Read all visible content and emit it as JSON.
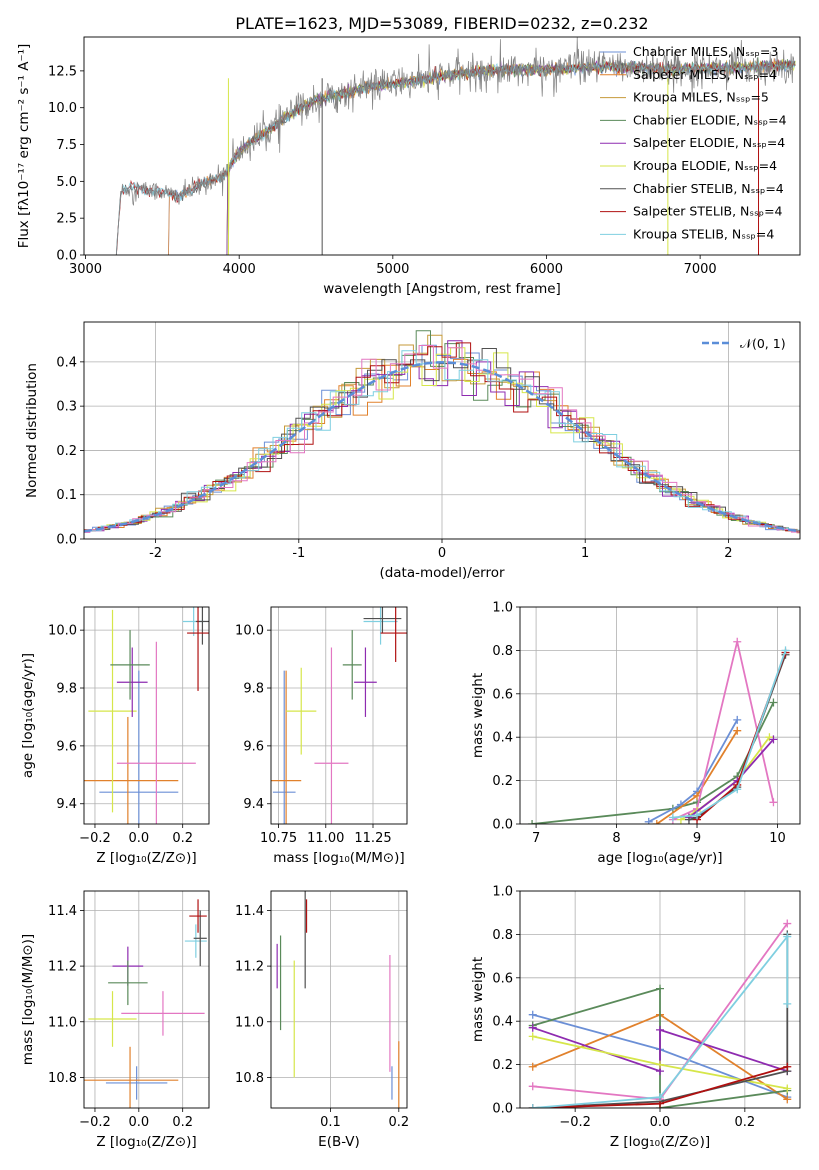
{
  "colors": {
    "Chabrier MILES": "#6b8fd6",
    "Salpeter MILES": "#e1812c",
    "Kroupa MILES": "#c69a3a",
    "Chabrier ELODIE": "#5a8a5a",
    "Salpeter ELODIE": "#8e2bb0",
    "Kroupa ELODIE": "#d6e64a",
    "Chabrier STELIB": "#505050",
    "Salpeter STELIB": "#b01010",
    "Kroupa STELIB": "#7fcfe0",
    "pink": "#e377c2",
    "normal": "#5b8ed8"
  },
  "chart_data": [
    {
      "id": "spectrum",
      "type": "line",
      "title": "PLATE=1623, MJD=53089, FIBERID=0232, z=0.232",
      "xlabel": "wavelength [Angstrom, rest frame]",
      "ylabel": "Flux [fλ10⁻¹⁷ erg cm⁻² s⁻¹ A⁻¹]",
      "xlim": [
        2990,
        7650
      ],
      "ylim": [
        0,
        14.8
      ],
      "xticks": [
        3000,
        4000,
        5000,
        6000,
        7000
      ],
      "yticks": [
        0.0,
        2.5,
        5.0,
        7.5,
        10.0,
        12.5
      ],
      "legend": [
        "Chabrier MILES, Nₛₛₚ=3",
        "Salpeter MILES, Nₛₛₚ=4",
        "Kroupa MILES, Nₛₛₚ=5",
        "Chabrier ELODIE, Nₛₛₚ=4",
        "Salpeter ELODIE, Nₛₛₚ=4",
        "Kroupa ELODIE, Nₛₛₚ=4",
        "Chabrier STELIB, Nₛₛₚ=4",
        "Salpeter STELIB, Nₛₛₚ=4",
        "Kroupa STELIB, Nₛₛₚ=4"
      ],
      "legend_placement": "upper-right",
      "continuum": [
        [
          3200,
          0
        ],
        [
          3230,
          4.3
        ],
        [
          3300,
          4.6
        ],
        [
          3400,
          4.4
        ],
        [
          3500,
          4.3
        ],
        [
          3600,
          4.0
        ],
        [
          3700,
          4.5
        ],
        [
          3800,
          5.0
        ],
        [
          3900,
          5.4
        ],
        [
          4000,
          7.0
        ],
        [
          4100,
          7.8
        ],
        [
          4200,
          8.5
        ],
        [
          4300,
          9.3
        ],
        [
          4400,
          10.0
        ],
        [
          4500,
          10.5
        ],
        [
          4600,
          10.8
        ],
        [
          4700,
          11.0
        ],
        [
          4800,
          11.3
        ],
        [
          4900,
          11.5
        ],
        [
          5000,
          11.6
        ],
        [
          5200,
          11.9
        ],
        [
          5400,
          12.3
        ],
        [
          5600,
          12.5
        ],
        [
          5800,
          12.6
        ],
        [
          6000,
          12.6
        ],
        [
          6200,
          12.7
        ],
        [
          6400,
          12.8
        ],
        [
          6600,
          12.7
        ],
        [
          6800,
          12.6
        ],
        [
          7000,
          12.7
        ],
        [
          7200,
          12.7
        ],
        [
          7400,
          12.8
        ],
        [
          7600,
          12.9
        ]
      ],
      "model_starts": {
        "Chabrier MILES": 3540,
        "Salpeter MILES": 3540,
        "Kroupa MILES": 3920,
        "Chabrier ELODIE": 3920,
        "Salpeter ELODIE": 3920,
        "Kroupa ELODIE": 3930,
        "Chabrier STELIB": 3200,
        "Salpeter STELIB": 3200,
        "Kroupa STELIB": 3200
      },
      "grid": false
    },
    {
      "id": "residuals",
      "type": "histogram",
      "xlabel": "(data-model)/error",
      "ylabel": "Normed distribution",
      "xlim": [
        -2.5,
        2.5
      ],
      "ylim": [
        0,
        0.49
      ],
      "xticks": [
        -2,
        -1,
        0,
        1,
        2
      ],
      "yticks": [
        0.0,
        0.1,
        0.2,
        0.3,
        0.4
      ],
      "legend": [
        "𝒩(0, 1)"
      ],
      "legend_placement": "upper-right",
      "grid": true
    },
    {
      "id": "age-z",
      "type": "errorbar",
      "xlabel": "Z [log₁₀(Z/Z⊙)]",
      "ylabel": "age  [log₁₀(age/yr)]",
      "xlim": [
        -0.25,
        0.32
      ],
      "ylim": [
        9.33,
        10.08
      ],
      "xticks": [
        -0.2,
        0.0,
        0.2
      ],
      "xticklabels": [
        "−0.2",
        "0.0",
        "0.2"
      ],
      "yticks": [
        9.4,
        9.6,
        9.8,
        10.0
      ],
      "yticklabels": [
        "9.4",
        "9.6",
        "9.8",
        "10.0"
      ],
      "grid": true,
      "points": [
        {
          "c": "Chabrier MILES",
          "x": 0.0,
          "xe": 0.18,
          "y": 9.44,
          "ye": 0.42
        },
        {
          "c": "Salpeter MILES",
          "x": -0.05,
          "xe": 0.23,
          "y": 9.48,
          "ye": 0.22
        },
        {
          "c": "pink",
          "x": 0.08,
          "xe": 0.18,
          "y": 9.54,
          "ye": 0.42
        },
        {
          "c": "Kroupa ELODIE",
          "x": -0.12,
          "xe": 0.11,
          "y": 9.72,
          "ye": 0.35
        },
        {
          "c": "Salpeter ELODIE",
          "x": -0.03,
          "xe": 0.07,
          "y": 9.82,
          "ye": 0.12
        },
        {
          "c": "Chabrier ELODIE",
          "x": -0.04,
          "xe": 0.09,
          "y": 9.88,
          "ye": 0.12
        },
        {
          "c": "Kroupa STELIB",
          "x": 0.25,
          "xe": 0.05,
          "y": 10.03,
          "ye": 0.05
        },
        {
          "c": "Chabrier STELIB",
          "x": 0.29,
          "xe": 0.03,
          "y": 10.03,
          "ye": 0.08
        },
        {
          "c": "Salpeter STELIB",
          "x": 0.27,
          "xe": 0.05,
          "y": 9.99,
          "ye": 0.2
        }
      ]
    },
    {
      "id": "age-mass",
      "type": "errorbar",
      "xlabel": "mass [log₁₀(M/M⊙)]",
      "ylabel": "",
      "xlim": [
        10.71,
        11.43
      ],
      "ylim": [
        9.33,
        10.08
      ],
      "xticks": [
        10.75,
        11.0,
        11.25
      ],
      "xticklabels": [
        "10.75",
        "11.00",
        "11.25"
      ],
      "yticks": [
        9.4,
        9.6,
        9.8,
        10.0
      ],
      "yticklabels": [
        "9.4",
        "9.6",
        "9.8",
        "10.0"
      ],
      "grid": true,
      "points": [
        {
          "c": "Chabrier MILES",
          "x": 10.78,
          "xe": 0.06,
          "y": 9.44,
          "ye": 0.42
        },
        {
          "c": "Salpeter MILES",
          "x": 10.79,
          "xe": 0.08,
          "y": 9.48,
          "ye": 0.38
        },
        {
          "c": "pink",
          "x": 11.03,
          "xe": 0.09,
          "y": 9.54,
          "ye": 0.4
        },
        {
          "c": "Kroupa ELODIE",
          "x": 10.87,
          "xe": 0.08,
          "y": 9.72,
          "ye": 0.15
        },
        {
          "c": "Salpeter ELODIE",
          "x": 11.21,
          "xe": 0.06,
          "y": 9.82,
          "ye": 0.12
        },
        {
          "c": "Chabrier ELODIE",
          "x": 11.14,
          "xe": 0.05,
          "y": 9.88,
          "ye": 0.12
        },
        {
          "c": "Kroupa STELIB",
          "x": 11.29,
          "xe": 0.09,
          "y": 10.03,
          "ye": 0.08
        },
        {
          "c": "Chabrier STELIB",
          "x": 11.3,
          "xe": 0.1,
          "y": 10.04,
          "ye": 0.05
        },
        {
          "c": "Salpeter STELIB",
          "x": 11.37,
          "xe": 0.08,
          "y": 9.99,
          "ye": 0.1
        }
      ]
    },
    {
      "id": "weight-age",
      "type": "line",
      "xlabel": "age  [log₁₀(age/yr)]",
      "ylabel": "mass weight",
      "xlim": [
        6.8,
        10.28
      ],
      "ylim": [
        0,
        1.0
      ],
      "xticks": [
        7,
        8,
        9,
        10
      ],
      "yticks": [
        0.0,
        0.2,
        0.4,
        0.6,
        0.8,
        1.0
      ],
      "grid": true,
      "series": [
        {
          "c": "Chabrier ELODIE",
          "x": [
            6.95,
            8.7,
            9.0,
            9.5,
            9.95
          ],
          "y": [
            0.0,
            0.07,
            0.1,
            0.22,
            0.56
          ]
        },
        {
          "c": "Chabrier MILES",
          "x": [
            8.4,
            8.8,
            9.0,
            9.5
          ],
          "y": [
            0.01,
            0.09,
            0.15,
            0.48
          ]
        },
        {
          "c": "Salpeter MILES",
          "x": [
            8.5,
            9.0,
            9.5
          ],
          "y": [
            0.0,
            0.13,
            0.43
          ]
        },
        {
          "c": "pink",
          "x": [
            8.7,
            9.0,
            9.5,
            9.95
          ],
          "y": [
            0.02,
            0.07,
            0.84,
            0.1
          ]
        },
        {
          "c": "Kroupa ELODIE",
          "x": [
            8.8,
            9.0,
            9.5,
            9.9
          ],
          "y": [
            0.02,
            0.06,
            0.2,
            0.4
          ]
        },
        {
          "c": "Salpeter ELODIE",
          "x": [
            8.9,
            9.5,
            9.95
          ],
          "y": [
            0.03,
            0.2,
            0.39
          ]
        },
        {
          "c": "Chabrier STELIB",
          "x": [
            8.9,
            9.0,
            9.5,
            10.1
          ],
          "y": [
            0.02,
            0.03,
            0.17,
            0.78
          ]
        },
        {
          "c": "Salpeter STELIB",
          "x": [
            9.0,
            9.5,
            10.1
          ],
          "y": [
            0.02,
            0.18,
            0.79
          ]
        },
        {
          "c": "Kroupa STELIB",
          "x": [
            8.7,
            9.0,
            9.5,
            10.1
          ],
          "y": [
            0.03,
            0.04,
            0.16,
            0.8
          ]
        }
      ]
    },
    {
      "id": "mass-z",
      "type": "errorbar",
      "xlabel": "Z [log₁₀(Z/Z⊙)]",
      "ylabel": "mass [log₁₀(M/M⊙)]",
      "xlim": [
        -0.25,
        0.32
      ],
      "ylim": [
        10.69,
        11.47
      ],
      "xticks": [
        -0.2,
        0.0,
        0.2
      ],
      "xticklabels": [
        "−0.2",
        "0.0",
        "0.2"
      ],
      "yticks": [
        10.8,
        11.0,
        11.2,
        11.4
      ],
      "yticklabels": [
        "10.8",
        "11.0",
        "11.2",
        "11.4"
      ],
      "grid": true,
      "points": [
        {
          "c": "Chabrier MILES",
          "x": -0.01,
          "xe": 0.14,
          "y": 10.78,
          "ye": 0.06
        },
        {
          "c": "Salpeter MILES",
          "x": -0.04,
          "xe": 0.22,
          "y": 10.79,
          "ye": 0.12
        },
        {
          "c": "pink",
          "x": 0.11,
          "xe": 0.19,
          "y": 11.03,
          "ye": 0.08
        },
        {
          "c": "Kroupa ELODIE",
          "x": -0.12,
          "xe": 0.11,
          "y": 11.01,
          "ye": 0.1
        },
        {
          "c": "Salpeter ELODIE",
          "x": -0.05,
          "xe": 0.07,
          "y": 11.2,
          "ye": 0.07
        },
        {
          "c": "Chabrier ELODIE",
          "x": -0.05,
          "xe": 0.09,
          "y": 11.14,
          "ye": 0.08
        },
        {
          "c": "Kroupa STELIB",
          "x": 0.26,
          "xe": 0.05,
          "y": 11.29,
          "ye": 0.06
        },
        {
          "c": "Chabrier STELIB",
          "x": 0.28,
          "xe": 0.03,
          "y": 11.3,
          "ye": 0.1
        },
        {
          "c": "Salpeter STELIB",
          "x": 0.27,
          "xe": 0.04,
          "y": 11.38,
          "ye": 0.06
        }
      ]
    },
    {
      "id": "mass-ebv",
      "type": "errorbar",
      "xlabel": "E(B-V)",
      "ylabel": "",
      "xlim": [
        0.013,
        0.212
      ],
      "ylim": [
        10.69,
        11.47
      ],
      "xticks": [
        0.1,
        0.2
      ],
      "xticklabels": [
        "0.1",
        "0.2"
      ],
      "yticks": [
        10.8,
        11.0,
        11.2,
        11.4
      ],
      "yticklabels": [
        "10.8",
        "11.0",
        "11.2",
        "11.4"
      ],
      "grid": true,
      "points": [
        {
          "c": "Salpeter ELODIE",
          "x": 0.022,
          "xe": 0,
          "y": 11.2,
          "ye": 0.08
        },
        {
          "c": "Chabrier ELODIE",
          "x": 0.027,
          "xe": 0,
          "y": 11.14,
          "ye": 0.17
        },
        {
          "c": "Kroupa ELODIE",
          "x": 0.047,
          "xe": 0,
          "y": 11.01,
          "ye": 0.21
        },
        {
          "c": "Chabrier STELIB",
          "x": 0.063,
          "xe": 0,
          "y": 11.3,
          "ye": 0.18
        },
        {
          "c": "Salpeter STELIB",
          "x": 0.065,
          "xe": 0,
          "y": 11.38,
          "ye": 0.06
        },
        {
          "c": "pink",
          "x": 0.187,
          "xe": 0,
          "y": 11.03,
          "ye": 0.21
        },
        {
          "c": "Chabrier MILES",
          "x": 0.19,
          "xe": 0,
          "y": 10.78,
          "ye": 0.06
        },
        {
          "c": "Salpeter MILES",
          "x": 0.2,
          "xe": 0,
          "y": 10.79,
          "ye": 0.14
        }
      ]
    },
    {
      "id": "weight-z",
      "type": "line",
      "xlabel": "Z [log₁₀(Z/Z⊙)]",
      "ylabel": "mass weight",
      "xlim": [
        -0.33,
        0.33
      ],
      "ylim": [
        0,
        1.0
      ],
      "xticks": [
        -0.2,
        0.0,
        0.2
      ],
      "xticklabels": [
        "−0.2",
        "0.0",
        "0.2"
      ],
      "yticks": [
        0.0,
        0.2,
        0.4,
        0.6,
        0.8,
        1.0
      ],
      "grid": true,
      "series": [
        {
          "c": "Chabrier MILES",
          "x": [
            -0.3,
            0.0,
            0.3
          ],
          "y": [
            0.43,
            0.27,
            0.05
          ]
        },
        {
          "c": "Salpeter MILES",
          "x": [
            -0.3,
            0.0,
            0.3
          ],
          "y": [
            0.19,
            0.43,
            0.04
          ]
        },
        {
          "c": "pink",
          "x": [
            -0.3,
            0.0,
            0.3
          ],
          "y": [
            0.1,
            0.04,
            0.85
          ]
        },
        {
          "c": "Chabrier ELODIE",
          "x": [
            -0.3,
            0.0,
            0.0,
            0.3
          ],
          "y": [
            0.38,
            0.55,
            0.0,
            0.08
          ]
        },
        {
          "c": "Salpeter ELODIE",
          "x": [
            -0.3,
            0.0,
            0.0,
            0.3
          ],
          "y": [
            0.37,
            0.17,
            0.36,
            0.17
          ]
        },
        {
          "c": "Kroupa ELODIE",
          "x": [
            -0.3,
            0.0,
            0.3
          ],
          "y": [
            0.33,
            0.2,
            0.09
          ]
        },
        {
          "c": "Chabrier STELIB",
          "x": [
            -0.3,
            0.0,
            0.3,
            0.3
          ],
          "y": [
            0.0,
            0.03,
            0.17,
            0.8
          ]
        },
        {
          "c": "Salpeter STELIB",
          "x": [
            -0.3,
            0.0,
            0.3
          ],
          "y": [
            0.0,
            0.02,
            0.19
          ]
        },
        {
          "c": "Kroupa STELIB",
          "x": [
            -0.3,
            0.0,
            0.3,
            0.3
          ],
          "y": [
            0.0,
            0.05,
            0.79,
            0.48
          ]
        }
      ]
    }
  ]
}
